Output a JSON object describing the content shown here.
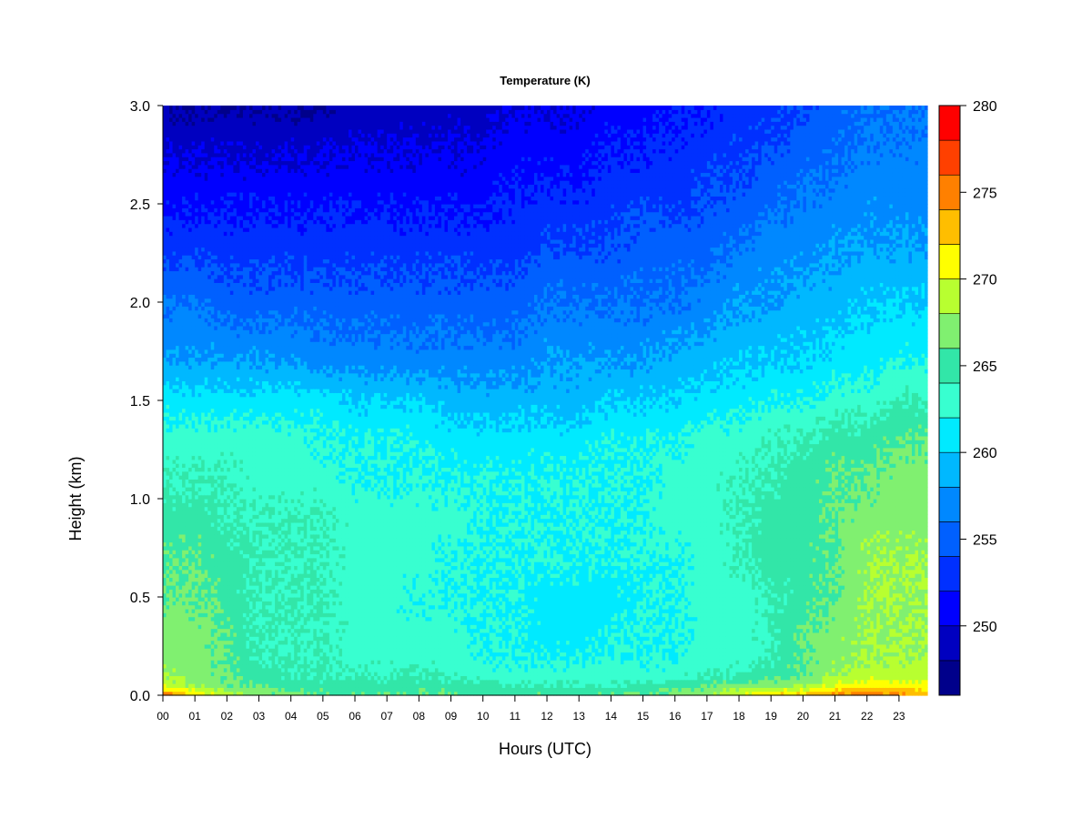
{
  "chart_data": {
    "type": "heatmap",
    "title": "Temperature (K)",
    "xlabel": "Hours (UTC)",
    "ylabel": "Height (km)",
    "x_ticks": [
      "00",
      "01",
      "02",
      "03",
      "04",
      "05",
      "06",
      "07",
      "08",
      "09",
      "10",
      "11",
      "12",
      "13",
      "14",
      "15",
      "16",
      "17",
      "18",
      "19",
      "20",
      "21",
      "22",
      "23"
    ],
    "y_ticks": [
      "0.0",
      "0.5",
      "1.0",
      "1.5",
      "2.0",
      "2.5",
      "3.0"
    ],
    "xlim": [
      0,
      24
    ],
    "ylim": [
      0,
      3.0
    ],
    "colorbar": {
      "ticks": [
        "250",
        "255",
        "260",
        "265",
        "270",
        "275",
        "280"
      ],
      "range": [
        246,
        280
      ],
      "levels": [
        246,
        248,
        250,
        252,
        254,
        256,
        258,
        260,
        262,
        264,
        266,
        268,
        270,
        272,
        274,
        276,
        278,
        280
      ],
      "colors": [
        "#00008b",
        "#0000c0",
        "#0000ff",
        "#0030ff",
        "#0060ff",
        "#0088ff",
        "#00b8ff",
        "#00eaff",
        "#38ffd0",
        "#32e6a8",
        "#80f070",
        "#b8ff30",
        "#ffff00",
        "#ffbe00",
        "#ff8000",
        "#ff4000",
        "#ff0000",
        "#c00000",
        "#800000"
      ]
    },
    "x_hours": [
      0,
      1,
      2,
      3,
      4,
      5,
      6,
      7,
      8,
      9,
      10,
      11,
      12,
      13,
      14,
      15,
      16,
      17,
      18,
      19,
      20,
      21,
      22,
      23,
      24
    ],
    "heights_km": [
      0,
      0.05,
      0.1,
      0.2,
      0.3,
      0.5,
      0.7,
      0.9,
      1.1,
      1.3,
      1.5,
      1.7,
      2.0,
      2.3,
      2.6,
      3.0
    ],
    "temperature_K": [
      [
        275,
        272,
        269,
        267,
        267,
        266,
        266,
        266,
        266,
        266,
        265,
        266,
        266,
        266,
        266,
        266,
        267,
        268,
        270,
        272,
        273,
        275,
        276,
        275,
        274
      ],
      [
        270,
        268,
        266,
        266,
        265,
        265,
        265,
        265,
        265,
        265,
        265,
        264,
        264,
        264,
        264,
        265,
        265,
        266,
        267,
        267,
        268,
        270,
        271,
        271,
        271
      ],
      [
        268,
        267,
        266,
        265,
        264,
        264,
        264,
        264,
        264,
        264,
        263,
        263,
        263,
        263,
        263,
        263,
        263,
        264,
        264,
        265,
        266,
        268,
        269,
        269,
        269
      ],
      [
        267,
        267,
        266,
        264,
        264,
        264,
        263,
        263,
        263,
        263,
        262,
        262,
        262,
        262,
        262,
        262,
        262,
        263,
        263,
        264,
        266,
        267,
        268,
        268,
        268
      ],
      [
        267,
        267,
        266,
        264,
        264,
        264,
        263,
        263,
        263,
        263,
        262,
        262,
        261,
        261,
        262,
        262,
        262,
        263,
        263,
        264,
        266,
        267,
        268,
        268,
        268
      ],
      [
        266,
        266,
        265,
        264,
        264,
        264,
        263,
        263,
        262,
        262,
        262,
        262,
        261,
        261,
        261,
        262,
        262,
        263,
        263,
        264,
        265,
        266,
        268,
        268,
        268
      ],
      [
        266,
        266,
        265,
        264,
        264,
        264,
        263,
        263,
        263,
        262,
        262,
        262,
        262,
        262,
        262,
        262,
        262,
        263,
        264,
        265,
        265,
        266,
        268,
        268,
        268
      ],
      [
        265,
        265,
        264,
        264,
        264,
        264,
        263,
        263,
        263,
        263,
        262,
        262,
        262,
        262,
        262,
        262,
        263,
        263,
        264,
        265,
        265,
        266,
        267,
        267,
        267
      ],
      [
        264,
        264,
        264,
        263,
        263,
        263,
        262,
        262,
        262,
        262,
        262,
        262,
        262,
        262,
        262,
        262,
        263,
        263,
        264,
        264,
        265,
        266,
        266,
        267,
        267
      ],
      [
        263,
        263,
        263,
        263,
        263,
        262,
        262,
        262,
        262,
        261,
        261,
        261,
        261,
        261,
        262,
        262,
        262,
        263,
        263,
        264,
        264,
        265,
        265,
        266,
        266
      ],
      [
        261,
        261,
        261,
        261,
        261,
        261,
        260,
        260,
        260,
        259,
        259,
        259,
        259,
        259,
        260,
        260,
        260,
        261,
        261,
        262,
        262,
        263,
        263,
        264,
        264
      ],
      [
        258,
        258,
        258,
        258,
        258,
        257,
        257,
        257,
        257,
        257,
        257,
        257,
        258,
        258,
        258,
        258,
        259,
        259,
        260,
        260,
        260,
        261,
        261,
        262,
        262
      ],
      [
        256,
        256,
        255,
        255,
        255,
        255,
        255,
        255,
        255,
        255,
        255,
        255,
        256,
        256,
        256,
        256,
        256,
        257,
        258,
        258,
        259,
        259,
        260,
        260,
        260
      ],
      [
        253,
        253,
        253,
        253,
        253,
        253,
        253,
        253,
        253,
        253,
        253,
        253,
        254,
        254,
        254,
        255,
        255,
        255,
        256,
        257,
        257,
        258,
        258,
        258,
        258
      ],
      [
        251,
        251,
        251,
        251,
        251,
        251,
        251,
        251,
        251,
        251,
        251,
        252,
        252,
        252,
        253,
        253,
        253,
        254,
        254,
        255,
        256,
        256,
        257,
        257,
        257
      ],
      [
        248,
        248,
        248,
        248,
        248,
        248,
        249,
        249,
        249,
        249,
        249,
        250,
        250,
        250,
        251,
        251,
        252,
        252,
        253,
        253,
        254,
        255,
        256,
        256,
        256
      ]
    ]
  }
}
